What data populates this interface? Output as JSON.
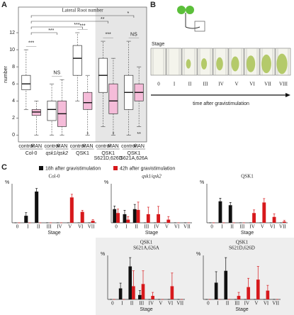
{
  "panel_labels": [
    "A",
    "B",
    "C"
  ],
  "diagram": {
    "title": "Stage",
    "stages": [
      "0",
      "I",
      "II",
      "III",
      "IV",
      "V",
      "VI",
      "VII",
      "VIII"
    ],
    "caption": "time after gravistimulation"
  },
  "chart_data": [
    {
      "type": "box",
      "title": "Lateral Root number",
      "ylabel": "number",
      "ylim": [
        -0.8,
        15
      ],
      "yticks": [
        0,
        2,
        4,
        6,
        8,
        10,
        12
      ],
      "box_colors": [
        "#ffffff",
        "#f5bcd9"
      ],
      "groups": [
        {
          "name": [
            "Col-0"
          ],
          "categories": [
            "control",
            "MAN"
          ],
          "boxes": [
            [
              3,
              5.3,
              6,
              7,
              10
            ],
            [
              0,
              2.3,
              2.7,
              3,
              4
            ]
          ],
          "pair_label": "***"
        },
        {
          "name": [
            "qsk1/qsk2"
          ],
          "categories": [
            "control",
            "MAN"
          ],
          "boxes": [
            [
              0,
              1.7,
              3,
              4,
              6
            ],
            [
              0,
              1,
              2.5,
              4,
              6.5
            ]
          ],
          "pair_label": "NS"
        },
        {
          "name": [
            "QSK1"
          ],
          "categories": [
            "control",
            "MAN"
          ],
          "boxes": [
            [
              4,
              7,
              9,
              10.5,
              12
            ],
            [
              0,
              3,
              3.8,
              5,
              7
            ]
          ],
          "pair_label": "***",
          "low_label": "*"
        },
        {
          "name": [
            "QSK1",
            "S621D,626D"
          ],
          "categories": [
            "control",
            "MAN"
          ],
          "boxes": [
            [
              1,
              5,
              7,
              9,
              11
            ],
            [
              0,
              2.5,
              4,
              6,
              9
            ]
          ],
          "pair_label": "***",
          "low_label": "*"
        },
        {
          "name": [
            "QSK1",
            "S621A,626A"
          ],
          "categories": [
            "control",
            "MAN"
          ],
          "boxes": [
            [
              0,
              3,
              5,
              7,
              11
            ],
            [
              1,
              4,
              5,
              6,
              8
            ]
          ],
          "pair_label": "NS",
          "low_label": "**"
        }
      ],
      "pair_label_color": "#d62728",
      "comparisons": [
        {
          "to": 1,
          "label": "***"
        },
        {
          "to": 2,
          "label": "***"
        },
        {
          "to": 3,
          "label": "**"
        },
        {
          "to": 4,
          "label": "*"
        }
      ]
    },
    {
      "type": "bar",
      "title": [
        "Col-0"
      ],
      "xlabel": "Stage",
      "ylabel": "%",
      "ylim": [
        0,
        100
      ],
      "categories": [
        "0",
        "I",
        "II",
        "III",
        "IV",
        "V",
        "VI",
        "VII"
      ],
      "series": [
        {
          "name": "18h after gravistimulation",
          "color": "#111111",
          "values": [
            0,
            18,
            80,
            0,
            0,
            0,
            0,
            0
          ],
          "errors": [
            0,
            8,
            8,
            0,
            0,
            0,
            0,
            0
          ]
        },
        {
          "name": "42h after gravistimulation",
          "color": "#d7191c",
          "values": [
            0,
            0,
            0,
            0,
            0,
            65,
            28,
            5
          ],
          "errors": [
            0,
            0,
            0,
            0,
            0,
            8,
            4,
            3
          ]
        }
      ]
    },
    {
      "type": "bar",
      "title": [
        "qsk1/qsk2"
      ],
      "italic_title": true,
      "xlabel": "Stage",
      "ylabel": "%",
      "ylim": [
        0,
        100
      ],
      "categories": [
        "0",
        "I",
        "II",
        "III",
        "IV",
        "V",
        "VI",
        "VII"
      ],
      "series": [
        {
          "name": "18h after gravistimulation",
          "color": "#111111",
          "values": [
            35,
            22,
            35,
            0,
            0,
            0,
            0,
            0
          ],
          "errors": [
            8,
            10,
            12,
            0,
            0,
            0,
            0,
            0
          ]
        },
        {
          "name": "42h after gravistimulation",
          "color": "#d7191c",
          "values": [
            25,
            8,
            33,
            22,
            22,
            8,
            0,
            0
          ],
          "errors": [
            10,
            8,
            20,
            18,
            20,
            8,
            0,
            0
          ]
        }
      ]
    },
    {
      "type": "bar",
      "title": [
        "QSK1"
      ],
      "xlabel": "Stage",
      "ylabel": "%",
      "ylim": [
        0,
        100
      ],
      "categories": [
        "0",
        "I",
        "II",
        "III",
        "IV",
        "V",
        "VI",
        "VII"
      ],
      "series": [
        {
          "name": "18h after gravistimulation",
          "color": "#111111",
          "values": [
            0,
            55,
            45,
            0,
            0,
            0,
            0,
            0
          ],
          "errors": [
            0,
            8,
            7,
            0,
            0,
            0,
            0,
            0
          ]
        },
        {
          "name": "42h after gravistimulation",
          "color": "#d7191c",
          "values": [
            0,
            0,
            0,
            0,
            25,
            52,
            15,
            3
          ],
          "errors": [
            0,
            0,
            0,
            0,
            8,
            10,
            8,
            3
          ]
        }
      ]
    },
    {
      "type": "bar",
      "title": [
        "QSK1",
        "S621A,626A"
      ],
      "xlabel": "Stage",
      "ylabel": "%",
      "ylim": [
        0,
        100
      ],
      "categories": [
        "0",
        "I",
        "II",
        "III",
        "IV",
        "V",
        "VI",
        "VII"
      ],
      "series": [
        {
          "name": "18h after gravistimulation",
          "color": "#111111",
          "values": [
            0,
            25,
            75,
            10,
            0,
            0,
            0,
            0
          ],
          "errors": [
            0,
            12,
            20,
            10,
            0,
            0,
            0,
            0
          ]
        },
        {
          "name": "42h after gravistimulation",
          "color": "#d7191c",
          "values": [
            0,
            0,
            30,
            35,
            8,
            0,
            30,
            0
          ],
          "errors": [
            0,
            0,
            35,
            30,
            8,
            0,
            30,
            0
          ]
        }
      ]
    },
    {
      "type": "bar",
      "title": [
        "QSK1",
        "S621D,626D"
      ],
      "xlabel": "Stage",
      "ylabel": "%",
      "ylim": [
        0,
        100
      ],
      "categories": [
        "0",
        "I",
        "II",
        "III",
        "IV",
        "V",
        "VI",
        "VII"
      ],
      "series": [
        {
          "name": "18h after gravistimulation",
          "color": "#111111",
          "values": [
            0,
            38,
            65,
            0,
            0,
            0,
            0,
            0
          ],
          "errors": [
            0,
            25,
            30,
            0,
            0,
            0,
            0,
            0
          ]
        },
        {
          "name": "42h after gravistimulation",
          "color": "#d7191c",
          "values": [
            0,
            0,
            0,
            8,
            28,
            45,
            20,
            0
          ],
          "errors": [
            0,
            0,
            0,
            8,
            20,
            30,
            12,
            0
          ]
        }
      ]
    }
  ]
}
